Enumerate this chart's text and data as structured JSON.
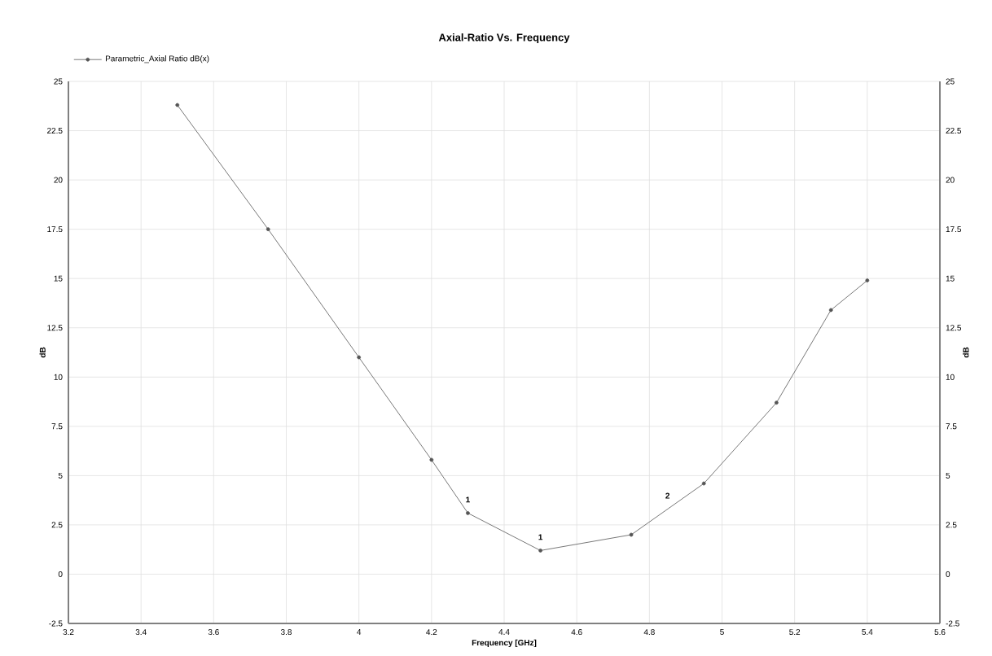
{
  "chart_data": {
    "type": "line",
    "title": "Axial-Ratio Vs. Frequency",
    "xlabel": "Frequency [GHz]",
    "ylabel": "dB",
    "y2label": "dB",
    "x": [
      3.5,
      3.75,
      4.0,
      4.2,
      4.3,
      4.5,
      4.75,
      4.95,
      5.15,
      5.3,
      5.4
    ],
    "series": [
      {
        "name": "Parametric_Axial Ratio dB(x)",
        "color": "#555555",
        "values": [
          23.8,
          17.5,
          11.0,
          5.8,
          3.1,
          1.2,
          2.0,
          4.6,
          8.7,
          13.4,
          14.9
        ]
      }
    ],
    "xlim": [
      3.2,
      5.6
    ],
    "xticks": [
      3.2,
      3.4,
      3.6,
      3.8,
      4,
      4.2,
      4.4,
      4.6,
      4.8,
      5,
      5.2,
      5.4,
      5.6
    ],
    "ylim": [
      -2.5,
      25
    ],
    "yticks": [
      -2.5,
      0,
      2.5,
      5,
      7.5,
      10,
      12.5,
      15,
      17.5,
      20,
      22.5,
      25
    ],
    "y2lim": [
      -2.5,
      25
    ],
    "y2ticks": [
      -2.5,
      0,
      2.5,
      5,
      7.5,
      10,
      12.5,
      15,
      17.5,
      20,
      22.5,
      25
    ],
    "annotations": [
      {
        "text": "1",
        "x": 4.3,
        "y": 3.1
      },
      {
        "text": "1",
        "x": 4.5,
        "y": 1.2
      },
      {
        "text": "2",
        "x": 4.85,
        "y": 3.3
      }
    ],
    "grid": true,
    "legend": "top left",
    "marker": "circle",
    "line_style": "solid"
  }
}
